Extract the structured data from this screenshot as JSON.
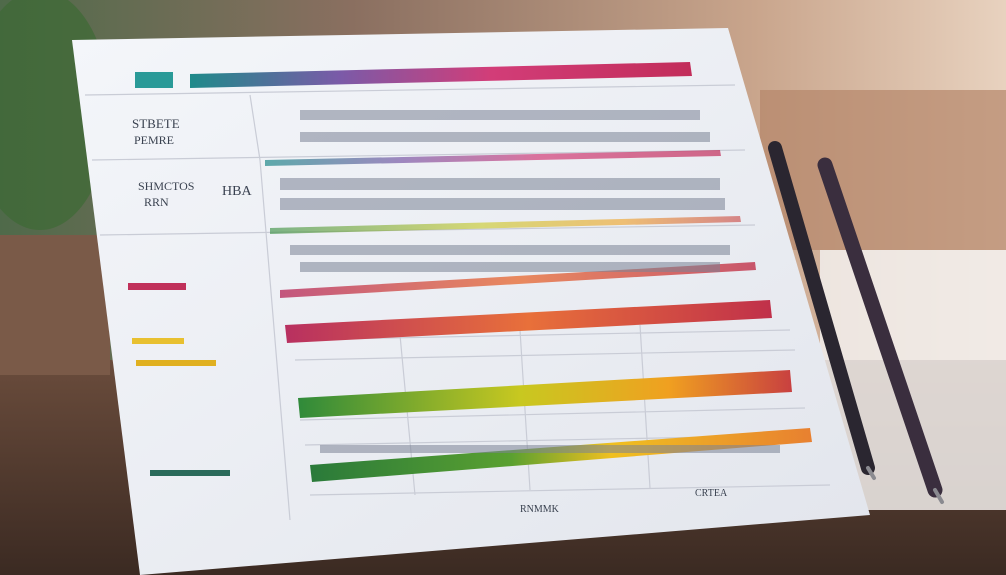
{
  "sheet": {
    "labels": [
      "STBETE",
      "PEMRE",
      "SHMCTOS",
      "RRN",
      "HBA",
      "RNMMK",
      "CRTEA"
    ]
  }
}
